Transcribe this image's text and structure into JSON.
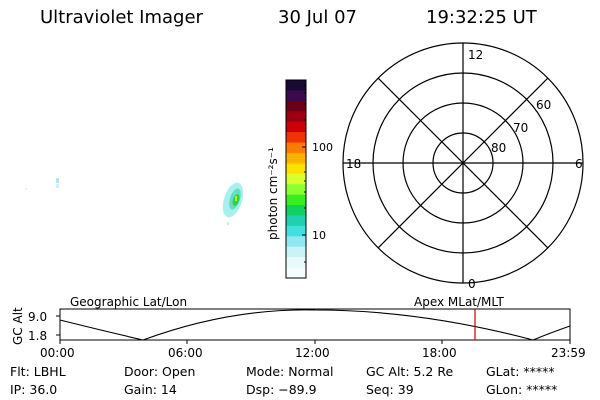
{
  "header": {
    "instrument": "Ultraviolet Imager",
    "date": "30 Jul 07",
    "time": "19:32:25 UT"
  },
  "colorbar": {
    "label": "photon cm⁻²s⁻¹",
    "ticks": [
      "100",
      "10"
    ],
    "colors": [
      "#1a0a33",
      "#3a0a4a",
      "#6a0018",
      "#9a0010",
      "#cc0008",
      "#ee3300",
      "#ff7a00",
      "#ffb000",
      "#ffe000",
      "#d8ff30",
      "#8cff30",
      "#38ee20",
      "#10d060",
      "#20d0b0",
      "#40e0e0",
      "#90e8f0",
      "#c8f4f8",
      "#e8fafc",
      "#f4fcfe"
    ]
  },
  "polar": {
    "mlt_labels": {
      "top": "12",
      "right": "6",
      "bottom": "0",
      "left": "18"
    },
    "lat_labels": [
      "60",
      "70",
      "80"
    ]
  },
  "timeline": {
    "left_label": "Geographic Lat/Lon",
    "right_label": "Apex MLat/MLT",
    "axis_title": "GC Alt",
    "y_ticks": [
      "9.0",
      "1.8"
    ],
    "x_ticks": [
      "00:00",
      "06:00",
      "12:00",
      "18:00",
      "23:59"
    ],
    "cursor_color": "#cc0000"
  },
  "status": {
    "flt": "Flt: LBHL",
    "door": "Door: Open",
    "mode": "Mode: Normal",
    "gc_alt": "GC Alt: 5.2 Re",
    "glat": "GLat: *****",
    "ip": "IP: 36.0",
    "gain": "Gain: 14",
    "dsp": "Dsp:  −89.9",
    "seq": "Seq: 39",
    "glon": "GLon: *****"
  }
}
